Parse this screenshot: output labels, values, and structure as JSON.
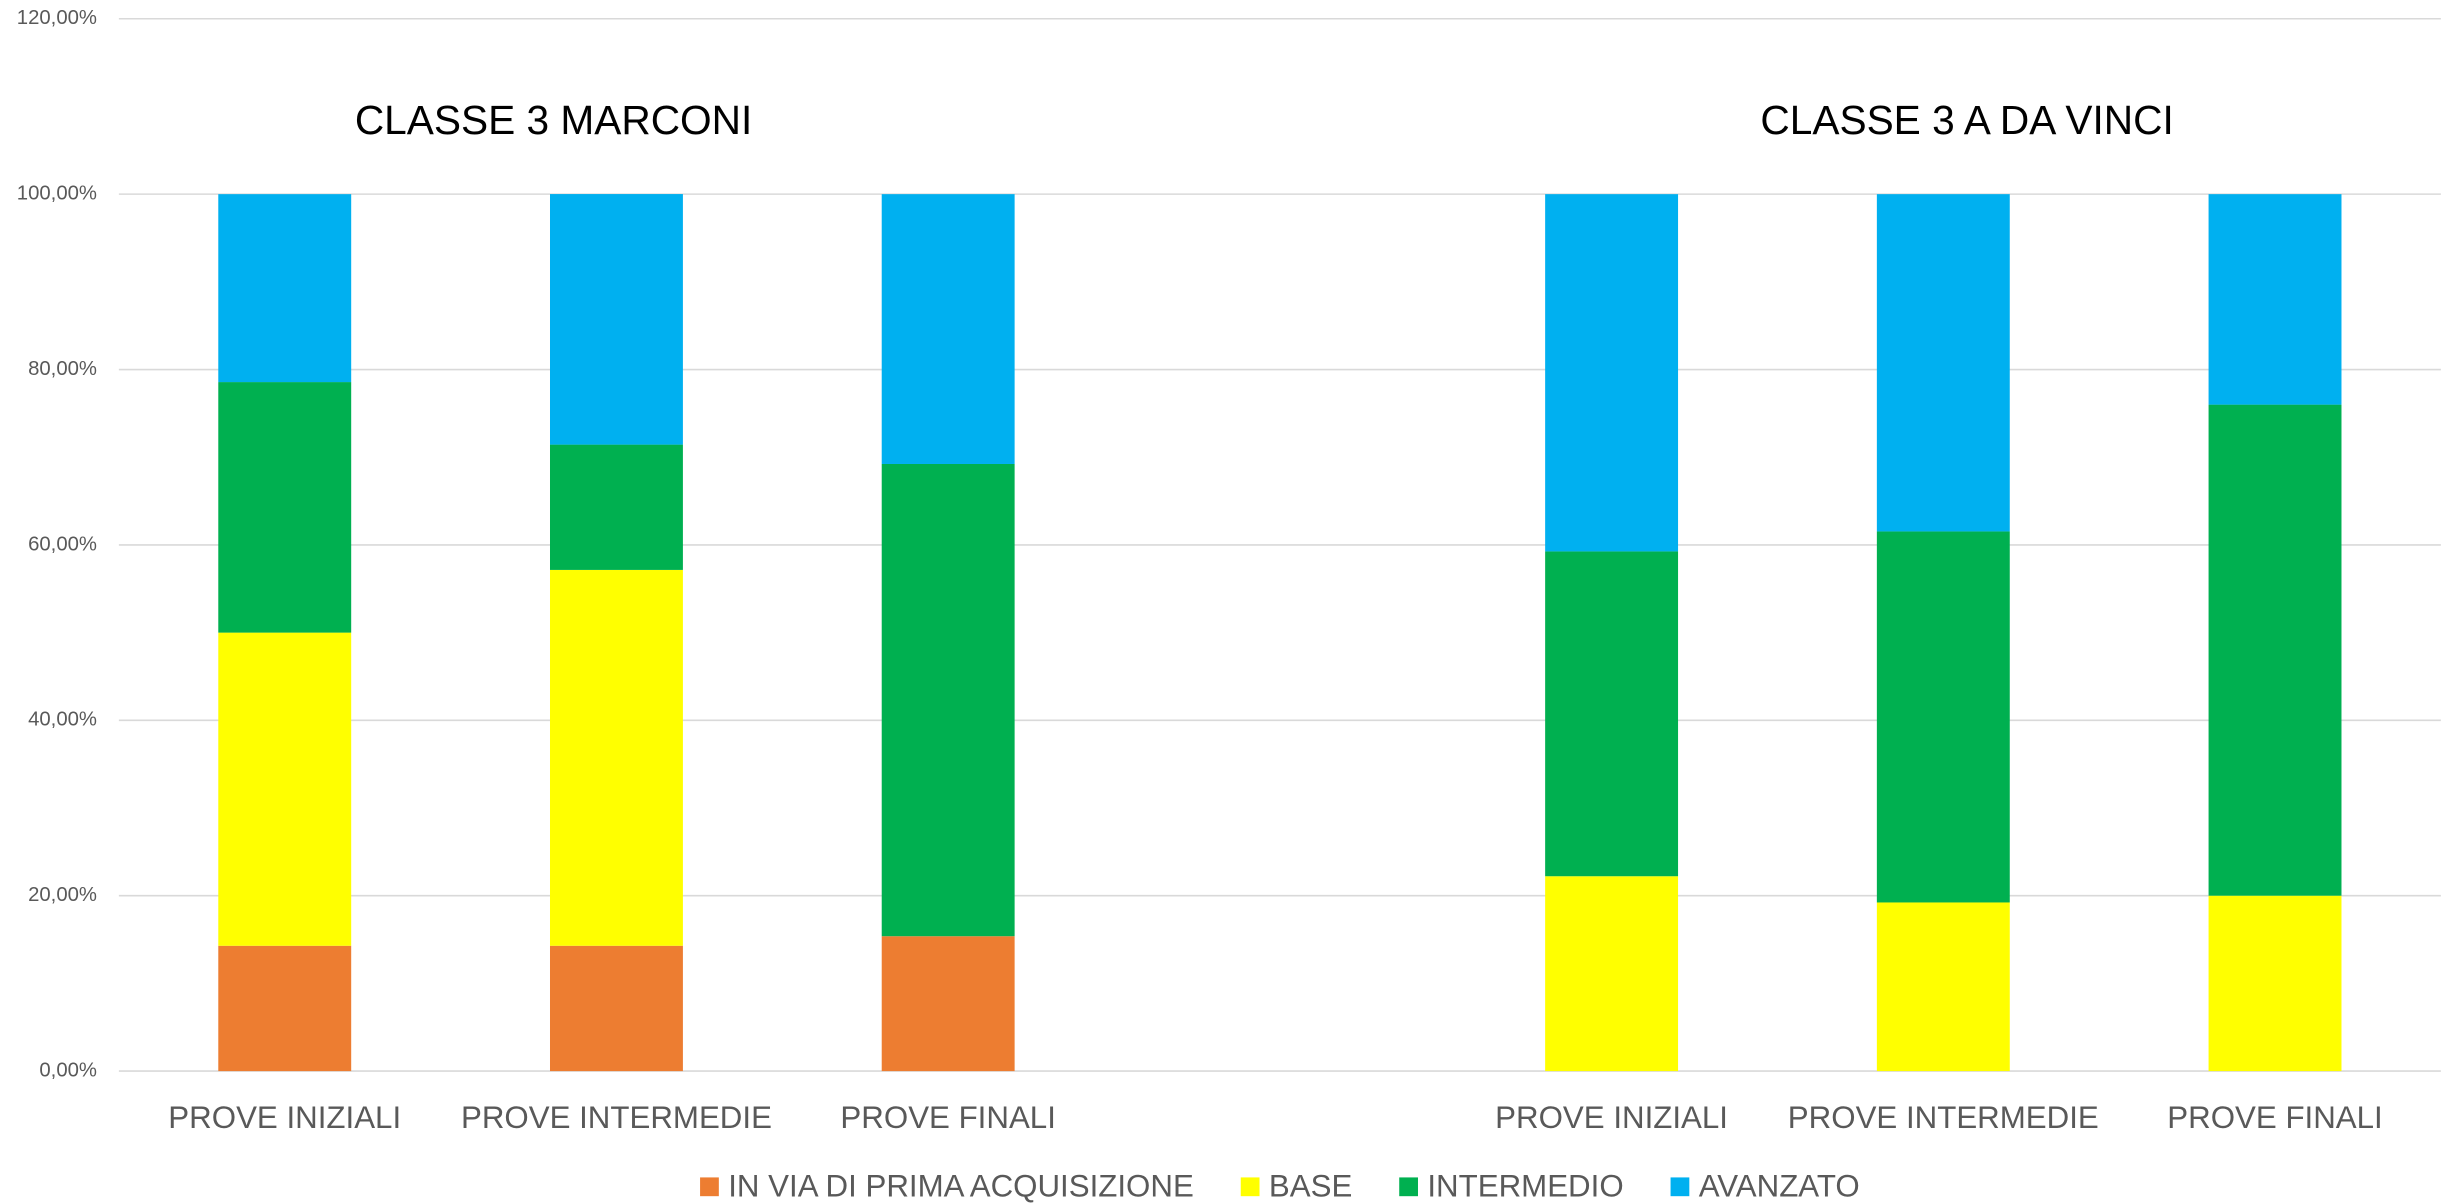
{
  "chart_data": {
    "type": "stacked_bar",
    "annotations": [
      "CLASSE  3 MARCONI",
      "CLASSE  3 A DA VINCI"
    ],
    "categories": [
      "PROVE INIZIALI",
      "PROVE INTERMEDIE",
      "PROVE FINALI",
      null,
      "PROVE INIZIALI",
      "PROVE INTERMEDIE",
      "PROVE FINALI"
    ],
    "series": [
      {
        "name": "IN VIA DI PRIMA ACQUISIZIONE",
        "color": "#ed7d31",
        "values": [
          14.29,
          14.29,
          15.38,
          null,
          0,
          0,
          0
        ]
      },
      {
        "name": "BASE",
        "color": "#ffff00",
        "values": [
          35.71,
          42.86,
          0,
          null,
          22.22,
          19.23,
          20
        ]
      },
      {
        "name": "INTERMEDIO",
        "color": "#00b050",
        "values": [
          28.57,
          14.29,
          53.85,
          null,
          37.04,
          42.31,
          56
        ]
      },
      {
        "name": "AVANZATO",
        "color": "#00b0f0",
        "values": [
          21.43,
          28.57,
          30.77,
          null,
          40.74,
          38.46,
          24
        ]
      }
    ],
    "ylim": [
      0,
      120
    ],
    "yticks": [
      {
        "value": 0,
        "label": "0,00%"
      },
      {
        "value": 20,
        "label": "20,00%"
      },
      {
        "value": 40,
        "label": "40,00%"
      },
      {
        "value": 60,
        "label": "60,00%"
      },
      {
        "value": 80,
        "label": "80,00%"
      },
      {
        "value": 100,
        "label": "100,00%"
      },
      {
        "value": 120,
        "label": "120,00%"
      }
    ],
    "grid": true,
    "legend": "bottom"
  }
}
